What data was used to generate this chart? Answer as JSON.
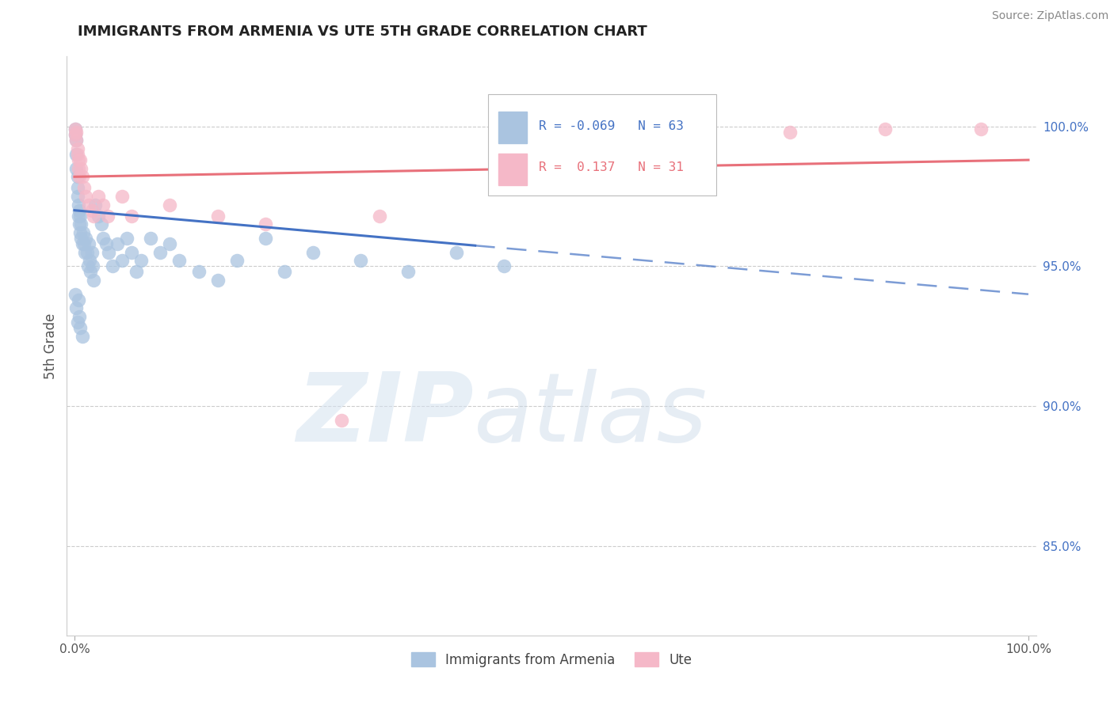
{
  "title": "IMMIGRANTS FROM ARMENIA VS UTE 5TH GRADE CORRELATION CHART",
  "source": "Source: ZipAtlas.com",
  "ylabel": "5th Grade",
  "ytick_labels": [
    "85.0%",
    "90.0%",
    "95.0%",
    "100.0%"
  ],
  "ytick_values": [
    0.85,
    0.9,
    0.95,
    1.0
  ],
  "legend_blue_label": "Immigrants from Armenia",
  "legend_pink_label": "Ute",
  "legend_blue_r": "R = -0.069",
  "legend_blue_n": "N = 63",
  "legend_pink_r": "R =  0.137",
  "legend_pink_n": "N = 31",
  "blue_scatter_color": "#aac4e0",
  "pink_scatter_color": "#f5b8c8",
  "blue_line_color": "#4472c4",
  "pink_line_color": "#e8707a",
  "blue_r": -0.069,
  "pink_r": 0.137,
  "watermark_zip": "ZIP",
  "watermark_atlas": "atlas",
  "background_color": "#ffffff",
  "grid_color": "#cccccc",
  "title_fontsize": 13,
  "source_fontsize": 10,
  "tick_fontsize": 11
}
